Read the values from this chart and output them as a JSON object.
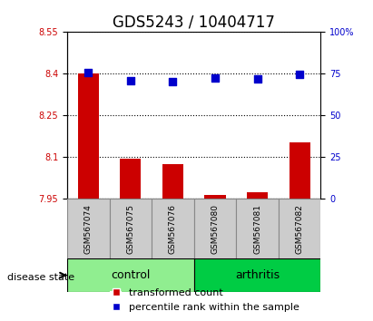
{
  "title": "GDS5243 / 10404717",
  "samples": [
    "GSM567074",
    "GSM567075",
    "GSM567076",
    "GSM567080",
    "GSM567081",
    "GSM567082"
  ],
  "transformed_counts": [
    8.4,
    8.095,
    8.075,
    7.965,
    7.975,
    8.155
  ],
  "percentile_ranks": [
    75.5,
    71.0,
    70.5,
    72.5,
    72.0,
    74.5
  ],
  "ylim_left": [
    7.95,
    8.55
  ],
  "ylim_right": [
    0,
    100
  ],
  "yticks_left": [
    7.95,
    8.1,
    8.25,
    8.4,
    8.55
  ],
  "yticks_right": [
    0,
    25,
    50,
    75,
    100
  ],
  "ytick_labels_left": [
    "7.95",
    "8.1",
    "8.25",
    "8.4",
    "8.55"
  ],
  "ytick_labels_right": [
    "0",
    "25",
    "50",
    "75",
    "100%"
  ],
  "groups": [
    {
      "label": "control",
      "samples": [
        "GSM567074",
        "GSM567075",
        "GSM567076"
      ],
      "color": "#90EE90"
    },
    {
      "label": "arthritis",
      "samples": [
        "GSM567080",
        "GSM567081",
        "GSM567082"
      ],
      "color": "#00CC44"
    }
  ],
  "bar_color": "#CC0000",
  "dot_color": "#0000CC",
  "bar_bottom": 7.95,
  "dot_size": 40,
  "grid_color": "#000000",
  "bg_color": "#FFFFFF",
  "tick_label_color_left": "#CC0000",
  "tick_label_color_right": "#0000CC",
  "title_fontsize": 12,
  "label_fontsize": 8,
  "legend_fontsize": 8,
  "group_label_fontsize": 9,
  "disease_state_label": "disease state",
  "legend_items": [
    "transformed count",
    "percentile rank within the sample"
  ]
}
